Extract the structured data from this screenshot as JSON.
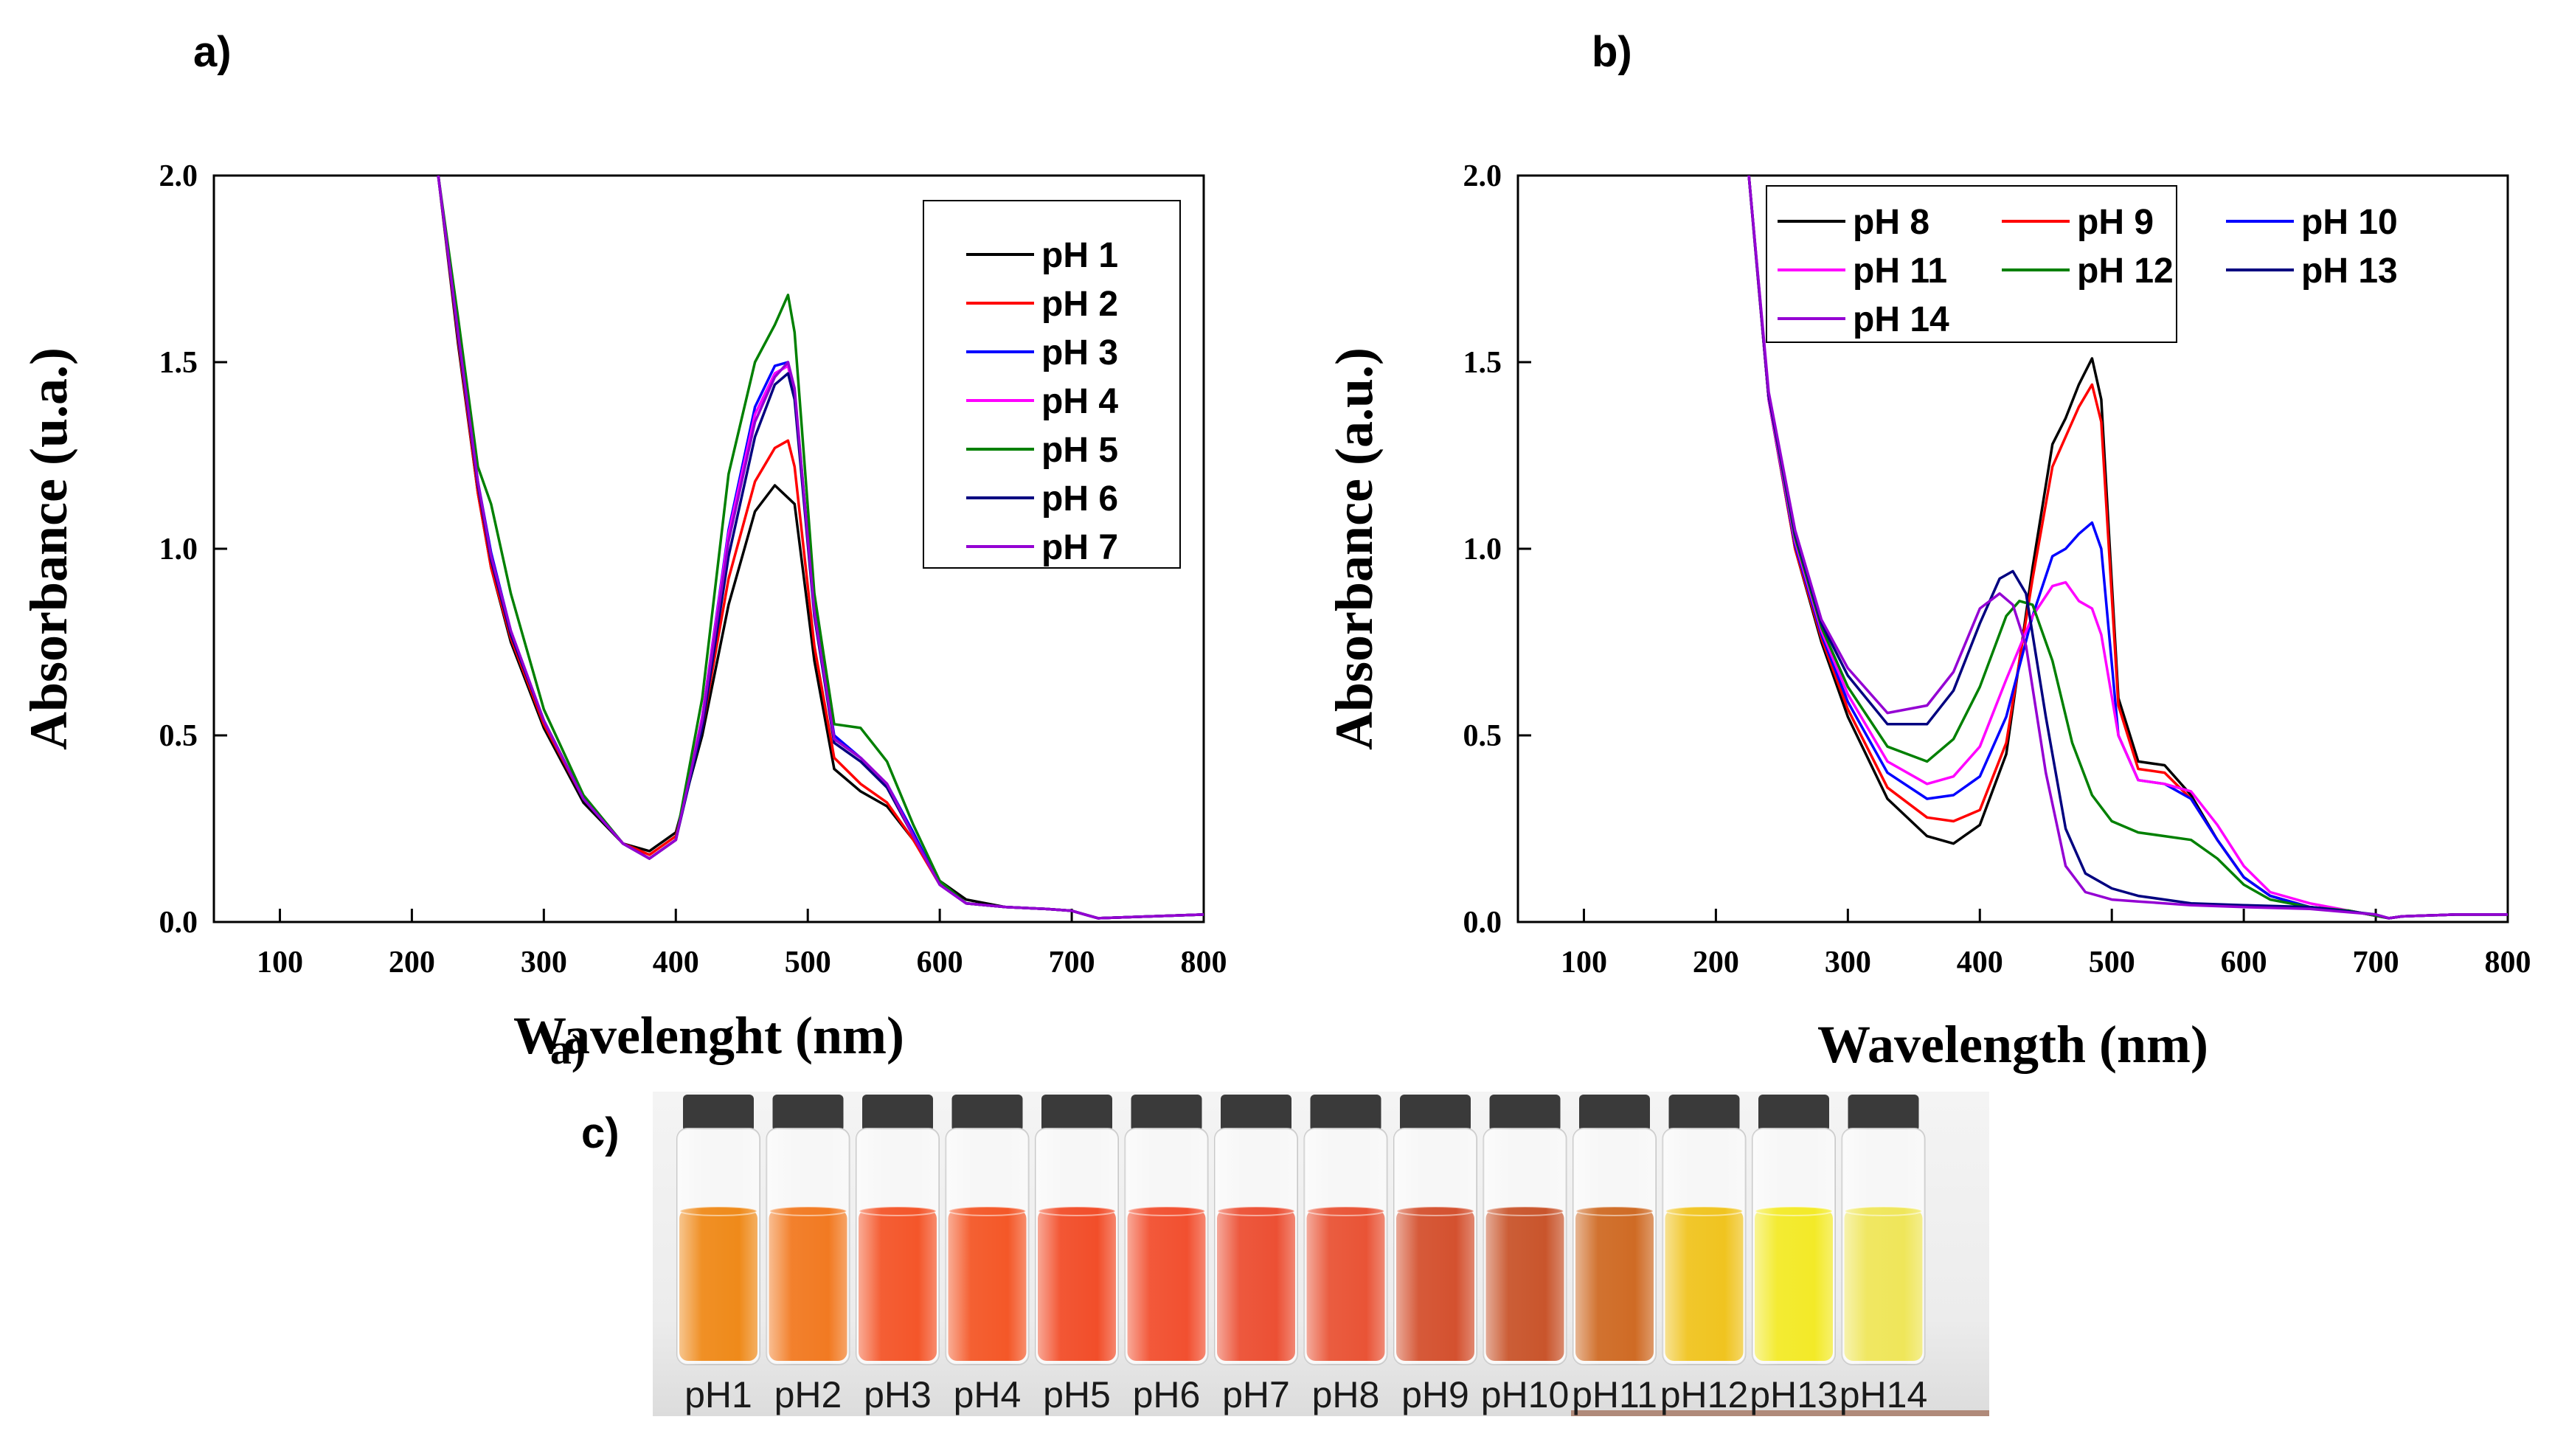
{
  "panels": {
    "a": "a)",
    "b": "b)",
    "c": "c)"
  },
  "chart_data": [
    {
      "id": "a",
      "type": "line",
      "title": "",
      "xlabel": "Wavelenght (nm)",
      "xlabel_overlay": "a)",
      "ylabel": "Absorbance (u.a.)",
      "xlim": [
        50,
        800
      ],
      "ylim": [
        0,
        2.0
      ],
      "xticks": [
        100,
        200,
        300,
        400,
        500,
        600,
        700,
        800
      ],
      "xtick_labels": [
        "100",
        "200",
        "300",
        "400",
        "500",
        "600",
        "700",
        "800"
      ],
      "yticks": [
        0,
        0.5,
        1.0,
        1.5,
        2.0
      ],
      "ytick_labels": [
        "0.0",
        "0.5",
        "1.0",
        "1.5",
        "2.0"
      ],
      "legend_position": "top-right",
      "series": [
        {
          "name": "pH 1",
          "color": "#000000",
          "x": [
            220,
            235,
            250,
            260,
            275,
            300,
            330,
            360,
            380,
            400,
            420,
            440,
            460,
            475,
            490,
            505,
            520,
            540,
            560,
            580,
            600,
            620,
            650,
            680,
            700,
            710,
            720,
            760,
            800
          ],
          "y": [
            2.0,
            1.55,
            1.15,
            0.95,
            0.75,
            0.52,
            0.32,
            0.21,
            0.19,
            0.24,
            0.5,
            0.85,
            1.1,
            1.17,
            1.12,
            0.7,
            0.41,
            0.35,
            0.31,
            0.22,
            0.11,
            0.06,
            0.04,
            0.035,
            0.03,
            0.02,
            0.01,
            0.015,
            0.02
          ]
        },
        {
          "name": "pH 2",
          "color": "#ff0000",
          "x": [
            220,
            235,
            250,
            260,
            275,
            300,
            330,
            360,
            380,
            400,
            420,
            440,
            460,
            475,
            485,
            490,
            505,
            520,
            540,
            560,
            580,
            600,
            620,
            650,
            680,
            700,
            710,
            720,
            760,
            800
          ],
          "y": [
            2.0,
            1.56,
            1.15,
            0.95,
            0.76,
            0.53,
            0.33,
            0.21,
            0.18,
            0.23,
            0.52,
            0.92,
            1.18,
            1.27,
            1.29,
            1.22,
            0.74,
            0.44,
            0.37,
            0.32,
            0.22,
            0.1,
            0.05,
            0.04,
            0.035,
            0.03,
            0.02,
            0.01,
            0.015,
            0.02
          ]
        },
        {
          "name": "pH 3",
          "color": "#0000ff",
          "x": [
            220,
            235,
            250,
            260,
            275,
            300,
            330,
            360,
            380,
            400,
            420,
            440,
            460,
            475,
            485,
            490,
            505,
            520,
            540,
            560,
            580,
            600,
            620,
            650,
            680,
            700,
            710,
            720,
            760,
            800
          ],
          "y": [
            2.0,
            1.58,
            1.18,
            0.99,
            0.78,
            0.54,
            0.33,
            0.21,
            0.17,
            0.22,
            0.55,
            1.05,
            1.38,
            1.49,
            1.5,
            1.42,
            0.84,
            0.5,
            0.44,
            0.37,
            0.24,
            0.1,
            0.05,
            0.04,
            0.035,
            0.03,
            0.02,
            0.01,
            0.015,
            0.02
          ]
        },
        {
          "name": "pH 4",
          "color": "#ff00ff",
          "x": [
            220,
            235,
            250,
            260,
            275,
            300,
            330,
            360,
            380,
            400,
            420,
            440,
            460,
            475,
            485,
            490,
            505,
            520,
            540,
            560,
            580,
            600,
            620,
            650,
            680,
            700,
            710,
            720,
            760,
            800
          ],
          "y": [
            2.0,
            1.58,
            1.17,
            0.98,
            0.78,
            0.54,
            0.33,
            0.21,
            0.17,
            0.22,
            0.55,
            1.04,
            1.36,
            1.47,
            1.49,
            1.41,
            0.83,
            0.49,
            0.44,
            0.37,
            0.23,
            0.1,
            0.05,
            0.04,
            0.035,
            0.03,
            0.02,
            0.01,
            0.015,
            0.02
          ]
        },
        {
          "name": "pH 5",
          "color": "#008000",
          "x": [
            220,
            235,
            250,
            260,
            275,
            300,
            330,
            360,
            380,
            400,
            420,
            440,
            460,
            475,
            485,
            490,
            505,
            520,
            540,
            560,
            580,
            600,
            620,
            650,
            680,
            700,
            710,
            720,
            760,
            800
          ],
          "y": [
            2.0,
            1.62,
            1.22,
            1.12,
            0.88,
            0.57,
            0.34,
            0.21,
            0.17,
            0.22,
            0.6,
            1.2,
            1.5,
            1.6,
            1.68,
            1.58,
            0.88,
            0.53,
            0.52,
            0.43,
            0.26,
            0.11,
            0.05,
            0.04,
            0.035,
            0.03,
            0.02,
            0.01,
            0.015,
            0.02
          ]
        },
        {
          "name": "pH 6",
          "color": "#000080",
          "x": [
            220,
            235,
            250,
            260,
            275,
            300,
            330,
            360,
            380,
            400,
            420,
            440,
            460,
            475,
            485,
            490,
            505,
            520,
            540,
            560,
            580,
            600,
            620,
            650,
            680,
            700,
            710,
            720,
            760,
            800
          ],
          "y": [
            2.0,
            1.57,
            1.17,
            0.97,
            0.77,
            0.54,
            0.33,
            0.21,
            0.17,
            0.22,
            0.52,
            0.98,
            1.3,
            1.44,
            1.47,
            1.4,
            0.82,
            0.48,
            0.43,
            0.36,
            0.23,
            0.1,
            0.05,
            0.04,
            0.035,
            0.03,
            0.02,
            0.01,
            0.015,
            0.02
          ]
        },
        {
          "name": "pH 7",
          "color": "#9400d3",
          "x": [
            220,
            235,
            250,
            260,
            275,
            300,
            330,
            360,
            380,
            400,
            420,
            440,
            460,
            475,
            485,
            490,
            505,
            520,
            540,
            560,
            580,
            600,
            620,
            650,
            680,
            700,
            710,
            720,
            760,
            800
          ],
          "y": [
            2.0,
            1.58,
            1.18,
            0.98,
            0.78,
            0.54,
            0.33,
            0.21,
            0.17,
            0.22,
            0.54,
            1.02,
            1.34,
            1.46,
            1.5,
            1.43,
            0.83,
            0.49,
            0.44,
            0.37,
            0.23,
            0.1,
            0.05,
            0.04,
            0.035,
            0.03,
            0.02,
            0.01,
            0.015,
            0.02
          ]
        }
      ]
    },
    {
      "id": "b",
      "type": "line",
      "title": "",
      "xlabel": "Wavelength (nm)",
      "ylabel": "Absorbance (a.u.)",
      "xlim": [
        50,
        800
      ],
      "ylim": [
        0,
        2.0
      ],
      "xticks": [
        100,
        200,
        300,
        400,
        500,
        600,
        700,
        800
      ],
      "xtick_labels": [
        "100",
        "200",
        "300",
        "400",
        "500",
        "600",
        "700",
        "800"
      ],
      "yticks": [
        0,
        0.5,
        1.0,
        1.5,
        2.0
      ],
      "ytick_labels": [
        "0.0",
        "0.5",
        "1.0",
        "1.5",
        "2.0"
      ],
      "legend_position": "top",
      "series": [
        {
          "name": "pH 8",
          "color": "#000000",
          "x": [
            225,
            240,
            260,
            280,
            300,
            330,
            360,
            380,
            400,
            420,
            440,
            455,
            465,
            475,
            485,
            492,
            505,
            520,
            540,
            560,
            580,
            600,
            620,
            650,
            680,
            710,
            720,
            760,
            800
          ],
          "y": [
            2.0,
            1.4,
            1.0,
            0.75,
            0.55,
            0.33,
            0.23,
            0.21,
            0.26,
            0.45,
            0.95,
            1.28,
            1.35,
            1.44,
            1.51,
            1.4,
            0.6,
            0.43,
            0.42,
            0.34,
            0.22,
            0.12,
            0.07,
            0.04,
            0.03,
            0.01,
            0.015,
            0.02,
            0.02
          ]
        },
        {
          "name": "pH 9",
          "color": "#ff0000",
          "x": [
            225,
            240,
            260,
            280,
            300,
            330,
            360,
            380,
            400,
            420,
            440,
            455,
            465,
            475,
            485,
            492,
            505,
            520,
            540,
            560,
            580,
            600,
            620,
            650,
            680,
            710,
            720,
            760,
            800
          ],
          "y": [
            2.0,
            1.4,
            1.0,
            0.76,
            0.57,
            0.36,
            0.28,
            0.27,
            0.3,
            0.48,
            0.92,
            1.22,
            1.3,
            1.38,
            1.44,
            1.34,
            0.58,
            0.41,
            0.4,
            0.33,
            0.22,
            0.12,
            0.07,
            0.04,
            0.03,
            0.01,
            0.015,
            0.02,
            0.02
          ]
        },
        {
          "name": "pH 10",
          "color": "#0000ff",
          "x": [
            225,
            240,
            260,
            280,
            300,
            330,
            360,
            380,
            400,
            420,
            440,
            455,
            465,
            475,
            485,
            492,
            505,
            520,
            540,
            560,
            580,
            600,
            620,
            650,
            680,
            710,
            720,
            760,
            800
          ],
          "y": [
            2.0,
            1.4,
            1.01,
            0.77,
            0.59,
            0.4,
            0.33,
            0.34,
            0.39,
            0.55,
            0.82,
            0.98,
            1.0,
            1.04,
            1.07,
            1.0,
            0.5,
            0.38,
            0.37,
            0.33,
            0.22,
            0.12,
            0.07,
            0.04,
            0.03,
            0.01,
            0.015,
            0.02,
            0.02
          ]
        },
        {
          "name": "pH 11",
          "color": "#ff00ff",
          "x": [
            225,
            240,
            260,
            280,
            300,
            330,
            360,
            380,
            400,
            420,
            440,
            455,
            465,
            475,
            485,
            492,
            505,
            520,
            540,
            560,
            580,
            600,
            620,
            650,
            680,
            710,
            720,
            760,
            800
          ],
          "y": [
            2.0,
            1.4,
            1.02,
            0.78,
            0.61,
            0.43,
            0.37,
            0.39,
            0.47,
            0.65,
            0.82,
            0.9,
            0.91,
            0.86,
            0.84,
            0.77,
            0.5,
            0.38,
            0.37,
            0.35,
            0.26,
            0.15,
            0.08,
            0.05,
            0.03,
            0.01,
            0.015,
            0.02,
            0.02
          ]
        },
        {
          "name": "pH 12",
          "color": "#008000",
          "x": [
            225,
            240,
            260,
            280,
            300,
            330,
            360,
            380,
            400,
            420,
            430,
            440,
            455,
            470,
            485,
            500,
            520,
            540,
            560,
            580,
            600,
            620,
            650,
            680,
            710,
            720,
            760,
            800
          ],
          "y": [
            2.0,
            1.41,
            1.03,
            0.79,
            0.63,
            0.47,
            0.43,
            0.49,
            0.63,
            0.82,
            0.86,
            0.85,
            0.7,
            0.48,
            0.34,
            0.27,
            0.24,
            0.23,
            0.22,
            0.17,
            0.1,
            0.06,
            0.04,
            0.03,
            0.01,
            0.015,
            0.02,
            0.02
          ]
        },
        {
          "name": "pH 13",
          "color": "#000080",
          "x": [
            225,
            240,
            260,
            280,
            300,
            330,
            360,
            380,
            400,
            415,
            425,
            435,
            450,
            465,
            480,
            500,
            520,
            540,
            560,
            600,
            650,
            700,
            710,
            720,
            760,
            800
          ],
          "y": [
            2.0,
            1.41,
            1.04,
            0.8,
            0.66,
            0.53,
            0.53,
            0.62,
            0.8,
            0.92,
            0.94,
            0.88,
            0.55,
            0.25,
            0.13,
            0.09,
            0.07,
            0.06,
            0.05,
            0.045,
            0.04,
            0.02,
            0.01,
            0.015,
            0.02,
            0.02
          ]
        },
        {
          "name": "pH 14",
          "color": "#9400d3",
          "x": [
            225,
            240,
            260,
            280,
            300,
            330,
            360,
            380,
            400,
            415,
            425,
            435,
            450,
            465,
            480,
            500,
            520,
            540,
            560,
            600,
            650,
            700,
            710,
            720,
            760,
            800
          ],
          "y": [
            2.0,
            1.42,
            1.05,
            0.81,
            0.68,
            0.56,
            0.58,
            0.67,
            0.84,
            0.88,
            0.85,
            0.74,
            0.4,
            0.15,
            0.08,
            0.06,
            0.055,
            0.05,
            0.045,
            0.04,
            0.035,
            0.02,
            0.01,
            0.015,
            0.02,
            0.02
          ]
        }
      ]
    }
  ],
  "photo": {
    "vials": [
      {
        "label": "pH1",
        "color": "#ef8a1a"
      },
      {
        "label": "pH2",
        "color": "#f27a22"
      },
      {
        "label": "pH3",
        "color": "#f4562a"
      },
      {
        "label": "pH4",
        "color": "#f45828"
      },
      {
        "label": "pH5",
        "color": "#f24e2a"
      },
      {
        "label": "pH6",
        "color": "#f25030"
      },
      {
        "label": "pH7",
        "color": "#ec5034"
      },
      {
        "label": "pH8",
        "color": "#e95436"
      },
      {
        "label": "pH9",
        "color": "#d4512f"
      },
      {
        "label": "pH10",
        "color": "#c9552c"
      },
      {
        "label": "pH11",
        "color": "#cf6b25"
      },
      {
        "label": "pH12",
        "color": "#f0c420"
      },
      {
        "label": "pH13",
        "color": "#f3ea28"
      },
      {
        "label": "pH14",
        "color": "#efe65a"
      }
    ]
  }
}
